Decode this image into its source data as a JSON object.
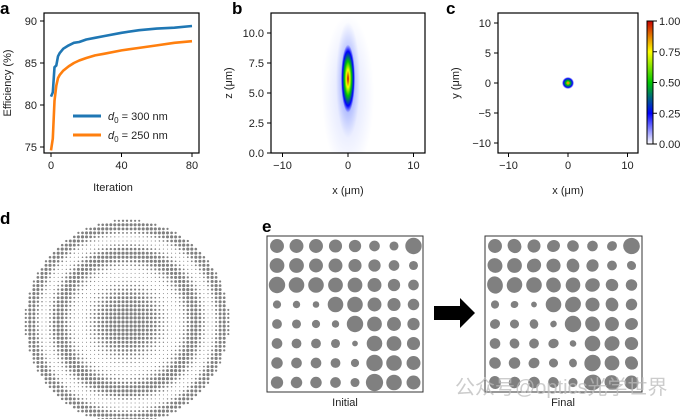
{
  "panel_labels": {
    "a": "a",
    "b": "b",
    "c": "c",
    "d": "d",
    "e": "e"
  },
  "chart_data": [
    {
      "panel": "a",
      "type": "line",
      "xlabel": "Iteration",
      "ylabel": "Efficiency (%)",
      "xlim": [
        -1.5,
        84
      ],
      "ylim": [
        74.3,
        91
      ],
      "xticks": [
        "0",
        "40",
        "80"
      ],
      "xtick_values": [
        0,
        40,
        80
      ],
      "yticks": [
        "75",
        "80",
        "85",
        "90"
      ],
      "ytick_values": [
        75,
        80,
        85,
        90
      ],
      "legend_position": "lower-right",
      "series": [
        {
          "name_symbol": "d",
          "name_sub": "0",
          "name_rest": " = 300 nm",
          "color": "#1f77b4",
          "x": [
            0,
            1,
            2,
            3,
            4,
            5,
            7,
            10,
            13,
            16,
            20,
            25,
            30,
            40,
            50,
            60,
            70,
            80
          ],
          "y": [
            81.0,
            81.5,
            84.5,
            84.7,
            85.8,
            86.2,
            86.7,
            87.1,
            87.4,
            87.5,
            87.8,
            88.0,
            88.2,
            88.6,
            88.9,
            89.1,
            89.2,
            89.4
          ]
        },
        {
          "name_symbol": "d",
          "name_sub": "0",
          "name_rest": " = 250 nm",
          "color": "#ff7f0e",
          "x": [
            0,
            1,
            2,
            3,
            4,
            5,
            7,
            10,
            13,
            16,
            20,
            25,
            30,
            40,
            50,
            60,
            70,
            80
          ],
          "y": [
            74.6,
            76.0,
            80.5,
            82.3,
            83.2,
            83.6,
            84.1,
            84.6,
            85.0,
            85.3,
            85.6,
            85.9,
            86.1,
            86.5,
            86.8,
            87.1,
            87.4,
            87.6
          ]
        }
      ]
    },
    {
      "panel": "b",
      "type": "heatmap",
      "xlabel": "x (μm)",
      "ylabel": "z (μm)",
      "xlim": [
        -12,
        12
      ],
      "ylim": [
        0,
        11.7
      ],
      "xticks": [
        "−10",
        "0",
        "10"
      ],
      "xtick_values": [
        -10,
        0,
        10
      ],
      "yticks": [
        "0.0",
        "2.5",
        "5.0",
        "7.5",
        "10.0"
      ],
      "ytick_values": [
        0,
        2.5,
        5,
        7.5,
        10
      ],
      "focus": {
        "x": 0,
        "z": 6.2
      }
    },
    {
      "panel": "c",
      "type": "heatmap",
      "xlabel": "x (μm)",
      "ylabel": "y (μm)",
      "xlim": [
        -12,
        12
      ],
      "ylim": [
        -12,
        12
      ],
      "xticks": [
        "−10",
        "0",
        "10"
      ],
      "xtick_values": [
        -10,
        0,
        10
      ],
      "yticks": [
        "−10",
        "−5",
        "0",
        "5",
        "10"
      ],
      "ytick_values": [
        -10,
        -5,
        0,
        5,
        10
      ],
      "focus": {
        "x": 0,
        "y": 0
      },
      "colorbar": {
        "range": [
          0,
          1
        ],
        "ticks": [
          "0.00",
          "0.25",
          "0.50",
          "0.75",
          "1.00"
        ],
        "tick_values": [
          0,
          0.25,
          0.5,
          0.75,
          1
        ],
        "colors": [
          "#ffffff",
          "#0000ff",
          "#00c800",
          "#ffff00",
          "#c80000"
        ]
      }
    },
    {
      "panel": "d",
      "type": "scatter",
      "marker_color": "#808080"
    },
    {
      "panel": "e",
      "type": "scatter",
      "marker_color": "#808080",
      "arrow_color": "#000000",
      "labels": {
        "initial": "Initial",
        "final": "Final"
      },
      "initial_relative_diameters": [
        [
          0.85,
          0.85,
          0.85,
          0.8,
          0.75,
          0.65,
          0.55,
          1.0
        ],
        [
          0.9,
          0.9,
          0.85,
          0.85,
          0.8,
          0.75,
          0.65,
          0.55
        ],
        [
          1.0,
          0.95,
          0.95,
          0.9,
          0.9,
          0.85,
          0.75,
          0.65
        ],
        [
          0.5,
          0.45,
          0.4,
          0.95,
          0.95,
          0.85,
          0.8,
          0.7
        ],
        [
          0.6,
          0.55,
          0.5,
          0.45,
          1.0,
          0.9,
          0.85,
          0.75
        ],
        [
          0.65,
          0.6,
          0.6,
          0.55,
          0.35,
          0.95,
          0.9,
          0.8
        ],
        [
          0.7,
          0.65,
          0.65,
          0.6,
          0.5,
          1.0,
          0.95,
          0.85
        ],
        [
          0.75,
          0.7,
          0.7,
          0.65,
          0.55,
          1.05,
          0.95,
          0.85
        ]
      ],
      "final_relative_diameters": [
        [
          0.85,
          0.85,
          0.8,
          0.75,
          0.7,
          0.65,
          0.6,
          1.0
        ],
        [
          0.9,
          0.9,
          0.85,
          0.85,
          0.8,
          0.75,
          0.6,
          0.55
        ],
        [
          1.0,
          0.95,
          0.95,
          0.9,
          0.9,
          0.85,
          0.75,
          0.7
        ],
        [
          0.5,
          0.45,
          0.35,
          0.95,
          0.95,
          0.85,
          0.8,
          0.7
        ],
        [
          0.6,
          0.55,
          0.55,
          0.4,
          1.0,
          0.9,
          0.85,
          0.75
        ],
        [
          0.65,
          0.6,
          0.6,
          0.6,
          0.4,
          0.95,
          0.9,
          0.8
        ],
        [
          0.7,
          0.7,
          0.65,
          0.55,
          0.5,
          1.0,
          0.9,
          0.8
        ],
        [
          0.75,
          0.7,
          0.7,
          0.65,
          0.55,
          1.0,
          0.9,
          0.85
        ]
      ]
    }
  ],
  "watermark": "公众号@optics光学世界"
}
